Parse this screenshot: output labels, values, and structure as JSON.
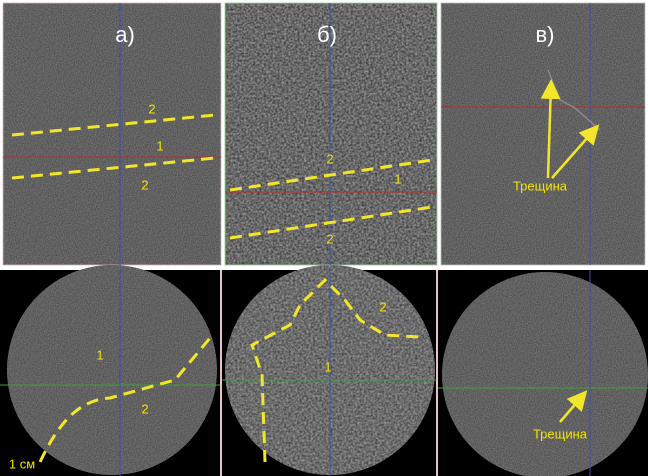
{
  "panels": [
    {
      "label": "а)",
      "top_labels": [
        "2",
        "1",
        "2"
      ],
      "bottom_labels": [
        "1",
        "2"
      ]
    },
    {
      "label": "б)",
      "top_labels": [
        "2",
        "1",
        "2"
      ],
      "bottom_labels": [
        "2",
        "1"
      ]
    },
    {
      "label": "в)",
      "top_labels": [
        "Трещина"
      ],
      "bottom_labels": [
        "Трещина"
      ]
    }
  ],
  "scale_bar": "1 см"
}
